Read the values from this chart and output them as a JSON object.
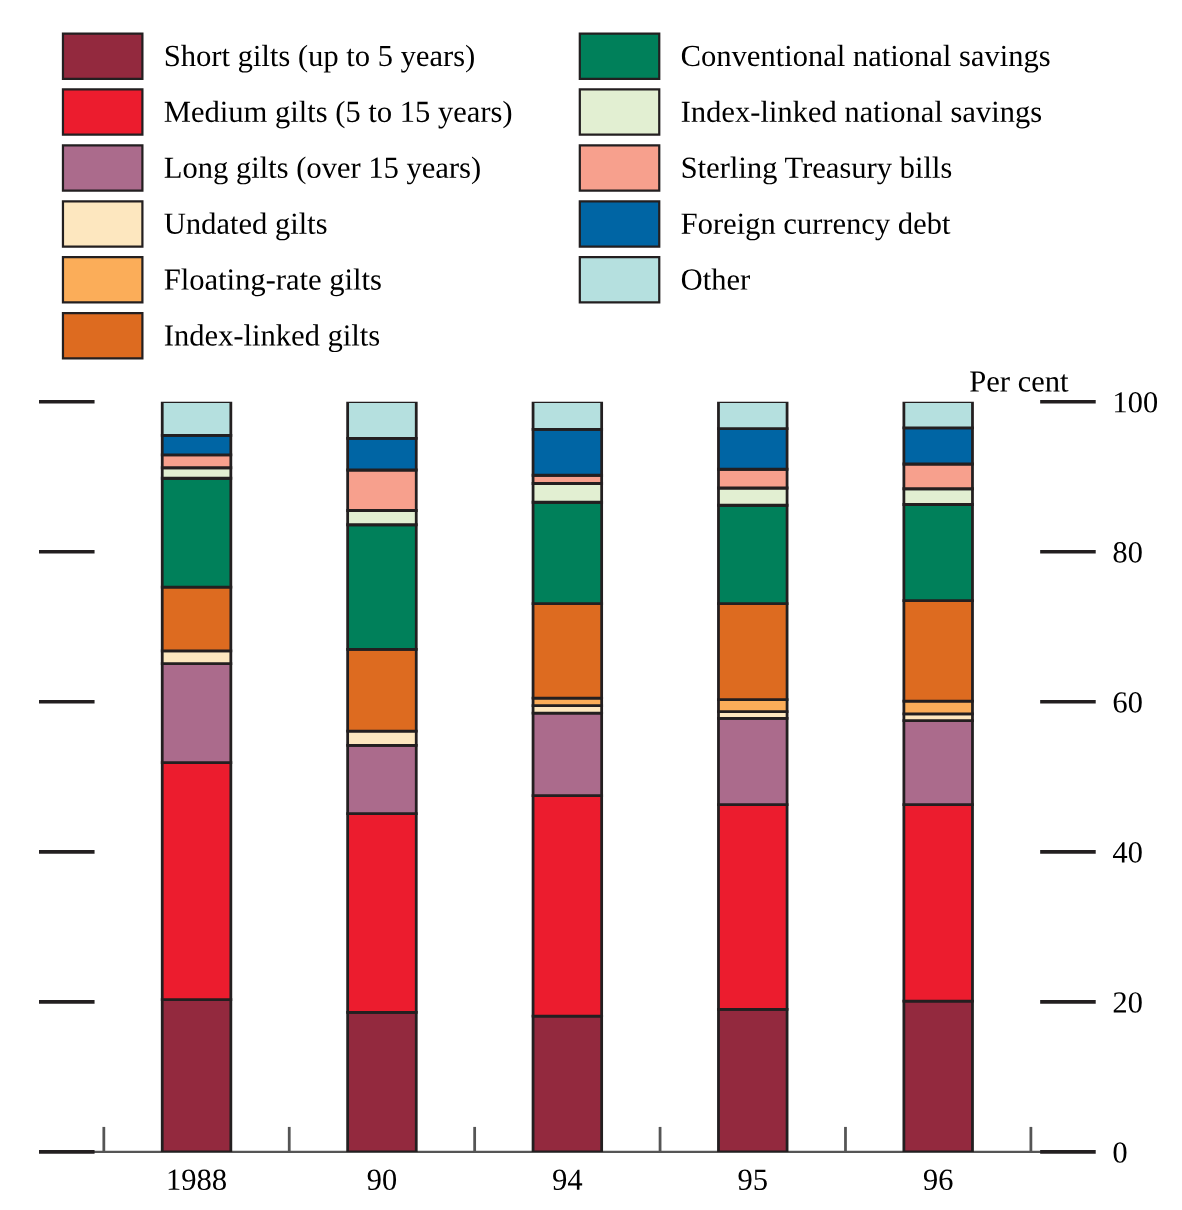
{
  "chart_data": {
    "type": "bar",
    "stacked": true,
    "categories": [
      "1988",
      "90",
      "94",
      "95",
      "96"
    ],
    "ylabel": "Per cent",
    "ylim": [
      0,
      100
    ],
    "yticks": [
      0,
      20,
      40,
      60,
      80,
      100
    ],
    "legend": "top",
    "grid": false,
    "series": [
      {
        "name": "Short gilts (up to 5 years)",
        "color": "#93293e",
        "values": [
          20.3,
          18.6,
          18.1,
          19.0,
          20.1
        ]
      },
      {
        "name": "Medium gilts (5 to 15 years)",
        "color": "#ec1c2e",
        "values": [
          31.6,
          26.5,
          29.4,
          27.3,
          26.2
        ]
      },
      {
        "name": "Long gilts (over 15 years)",
        "color": "#ab6b8c",
        "values": [
          13.2,
          9.1,
          11.0,
          11.5,
          11.2
        ]
      },
      {
        "name": "Undated gilts",
        "color": "#fde7bf",
        "values": [
          1.7,
          1.9,
          1.0,
          0.9,
          0.9
        ]
      },
      {
        "name": "Floating-rate gilts",
        "color": "#fbad59",
        "values": [
          null,
          null,
          1.0,
          1.6,
          1.7
        ]
      },
      {
        "name": "Index-linked gilts",
        "color": "#dd6b20",
        "values": [
          8.5,
          10.9,
          12.6,
          12.8,
          13.4
        ]
      },
      {
        "name": "Conventional national savings",
        "color": "#00805a",
        "values": [
          14.5,
          16.6,
          13.5,
          13.1,
          12.8
        ]
      },
      {
        "name": "Index-linked national savings",
        "color": "#e2efd2",
        "values": [
          1.4,
          1.9,
          2.5,
          2.3,
          2.1
        ]
      },
      {
        "name": "Sterling Treasury bills",
        "color": "#f7a08d",
        "values": [
          1.7,
          5.4,
          1.1,
          2.5,
          3.3
        ]
      },
      {
        "name": "Foreign currency debt",
        "color": "#0065a4",
        "values": [
          2.6,
          4.2,
          6.1,
          5.4,
          4.8
        ]
      },
      {
        "name": "Other",
        "color": "#b5e0df",
        "values": [
          4.5,
          4.9,
          3.7,
          3.6,
          3.5
        ]
      }
    ]
  }
}
